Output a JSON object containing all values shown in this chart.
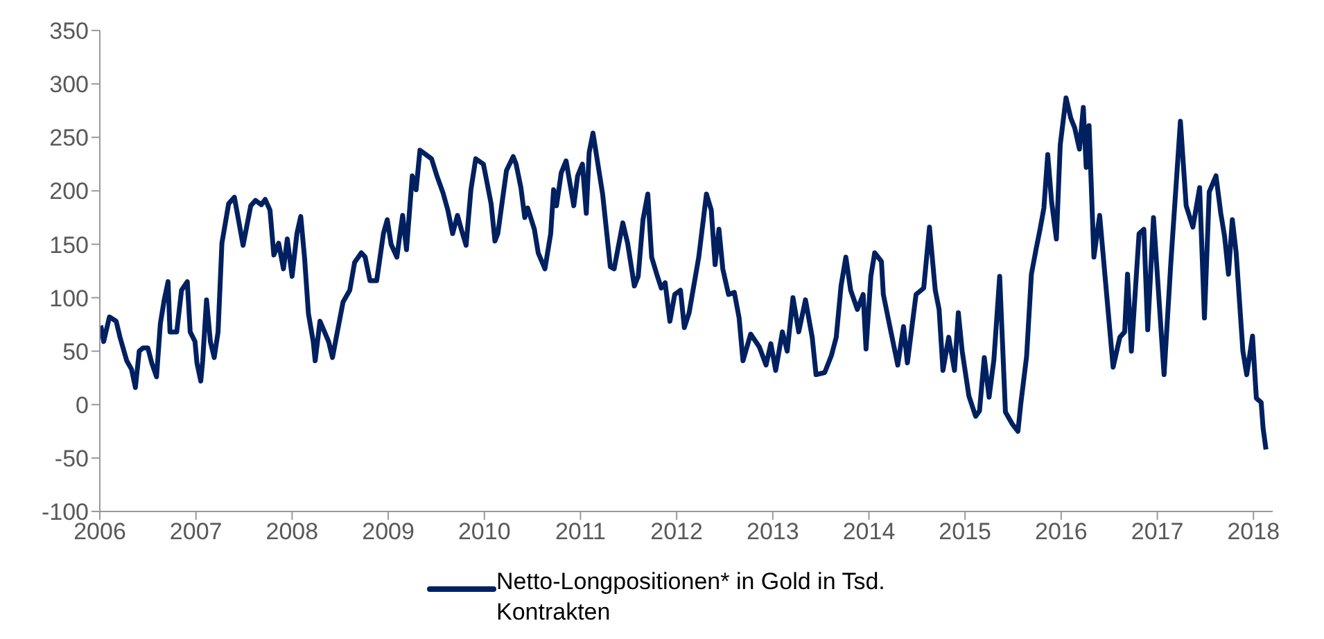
{
  "chart_data": {
    "type": "line",
    "xlim": [
      2006,
      2018.2
    ],
    "xticks": [
      2006,
      2007,
      2008,
      2009,
      2010,
      2011,
      2012,
      2013,
      2014,
      2015,
      2016,
      2017,
      2018
    ],
    "ylim": [
      -100,
      350
    ],
    "yticks": [
      -100,
      -50,
      0,
      50,
      100,
      150,
      200,
      250,
      300,
      350
    ],
    "grid": false,
    "legend": "bottom",
    "marker": "none",
    "line_style": "solid",
    "series": [
      {
        "name": "Netto-Longpositionen* in Gold in Tsd. Kontrakten",
        "color": "#002060",
        "x": [
          2006.01,
          2006.04,
          2006.1,
          2006.17,
          2006.21,
          2006.28,
          2006.33,
          2006.37,
          2006.41,
          2006.45,
          2006.5,
          2006.54,
          2006.59,
          2006.63,
          2006.67,
          2006.71,
          2006.73,
          2006.8,
          2006.85,
          2006.91,
          2006.94,
          2006.99,
          2007.01,
          2007.05,
          2007.07,
          2007.11,
          2007.15,
          2007.19,
          2007.23,
          2007.27,
          2007.34,
          2007.4,
          2007.49,
          2007.57,
          2007.62,
          2007.68,
          2007.72,
          2007.77,
          2007.81,
          2007.86,
          2007.91,
          2007.95,
          2008.0,
          2008.05,
          2008.09,
          2008.13,
          2008.17,
          2008.22,
          2008.24,
          2008.29,
          2008.38,
          2008.42,
          2008.46,
          2008.53,
          2008.6,
          2008.65,
          2008.72,
          2008.76,
          2008.81,
          2008.88,
          2008.95,
          2008.99,
          2009.03,
          2009.09,
          2009.12,
          2009.15,
          2009.19,
          2009.25,
          2009.29,
          2009.33,
          2009.39,
          2009.45,
          2009.51,
          2009.57,
          2009.62,
          2009.67,
          2009.72,
          2009.76,
          2009.81,
          2009.86,
          2009.91,
          2009.99,
          2010.07,
          2010.11,
          2010.14,
          2010.23,
          2010.3,
          2010.33,
          2010.38,
          2010.42,
          2010.45,
          2010.52,
          2010.56,
          2010.63,
          2010.69,
          2010.72,
          2010.75,
          2010.8,
          2010.85,
          2010.93,
          2010.97,
          2011.02,
          2011.06,
          2011.09,
          2011.13,
          2011.23,
          2011.31,
          2011.35,
          2011.44,
          2011.49,
          2011.56,
          2011.6,
          2011.65,
          2011.7,
          2011.74,
          2011.8,
          2011.84,
          2011.88,
          2011.93,
          2011.98,
          2012.04,
          2012.08,
          2012.13,
          2012.23,
          2012.31,
          2012.36,
          2012.4,
          2012.44,
          2012.48,
          2012.54,
          2012.6,
          2012.65,
          2012.69,
          2012.77,
          2012.86,
          2012.93,
          2012.98,
          2013.03,
          2013.1,
          2013.15,
          2013.21,
          2013.27,
          2013.34,
          2013.41,
          2013.45,
          2013.54,
          2013.61,
          2013.66,
          2013.71,
          2013.76,
          2013.81,
          2013.88,
          2013.94,
          2013.97,
          2014.02,
          2014.06,
          2014.13,
          2014.15,
          2014.22,
          2014.3,
          2014.36,
          2014.4,
          2014.49,
          2014.57,
          2014.63,
          2014.69,
          2014.73,
          2014.77,
          2014.83,
          2014.89,
          2014.93,
          2014.97,
          2015.04,
          2015.11,
          2015.15,
          2015.2,
          2015.25,
          2015.3,
          2015.36,
          2015.42,
          2015.49,
          2015.55,
          2015.58,
          2015.64,
          2015.69,
          2015.74,
          2015.78,
          2015.82,
          2015.86,
          2015.9,
          2015.95,
          2015.99,
          2016.05,
          2016.1,
          2016.14,
          2016.19,
          2016.23,
          2016.26,
          2016.29,
          2016.34,
          2016.4,
          2016.46,
          2016.54,
          2016.61,
          2016.66,
          2016.69,
          2016.73,
          2016.81,
          2016.86,
          2016.9,
          2016.96,
          2017.07,
          2017.14,
          2017.24,
          2017.3,
          2017.37,
          2017.44,
          2017.49,
          2017.54,
          2017.61,
          2017.66,
          2017.7,
          2017.74,
          2017.78,
          2017.82,
          2017.89,
          2017.93,
          2017.99,
          2018.03,
          2018.08,
          2018.1,
          2018.13
        ],
        "values": [
          74,
          59,
          82,
          78,
          63,
          41,
          33,
          16,
          50,
          53,
          53,
          39,
          26,
          76,
          98,
          115,
          68,
          68,
          107,
          115,
          68,
          59,
          39,
          22,
          41,
          98,
          59,
          44,
          68,
          151,
          188,
          194,
          149,
          186,
          191,
          187,
          192,
          182,
          140,
          151,
          127,
          155,
          120,
          160,
          176,
          137,
          85,
          59,
          41,
          78,
          59,
          44,
          63,
          96,
          107,
          133,
          142,
          138,
          116,
          116,
          160,
          173,
          150,
          138,
          158,
          177,
          145,
          214,
          201,
          238,
          234,
          230,
          213,
          198,
          182,
          160,
          177,
          164,
          149,
          201,
          230,
          225,
          188,
          153,
          160,
          219,
          232,
          225,
          203,
          175,
          184,
          164,
          142,
          127,
          160,
          201,
          186,
          217,
          228,
          186,
          214,
          225,
          179,
          236,
          254,
          197,
          129,
          127,
          170,
          151,
          111,
          120,
          173,
          197,
          138,
          120,
          109,
          114,
          78,
          103,
          107,
          72,
          86,
          138,
          197,
          182,
          131,
          164,
          127,
          103,
          105,
          81,
          41,
          66,
          54,
          37,
          57,
          32,
          68,
          50,
          100,
          68,
          98,
          63,
          28,
          30,
          46,
          63,
          111,
          138,
          107,
          89,
          103,
          52,
          120,
          142,
          134,
          103,
          72,
          37,
          73,
          39,
          103,
          109,
          166,
          107,
          89,
          32,
          63,
          32,
          86,
          50,
          8,
          -11,
          -6,
          44,
          7,
          42,
          120,
          -7,
          -18,
          -25,
          1,
          45,
          122,
          146,
          164,
          184,
          234,
          190,
          155,
          243,
          287,
          268,
          259,
          239,
          278,
          222,
          261,
          138,
          177,
          116,
          35,
          63,
          68,
          122,
          50,
          160,
          164,
          70,
          175,
          28,
          132,
          265,
          186,
          166,
          203,
          81,
          199,
          214,
          179,
          157,
          122,
          173,
          142,
          50,
          28,
          64,
          6,
          2,
          -22,
          -42
        ]
      }
    ]
  }
}
